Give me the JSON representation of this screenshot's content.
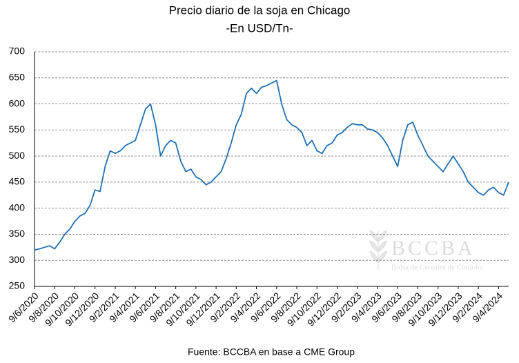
{
  "chart_data": {
    "type": "line",
    "title": "Precio diario de la soja en Chicago",
    "subtitle": "-En USD/Tn-",
    "source": "Fuente: BCCBA en base a CME Group",
    "watermark": "BCCBA",
    "watermark_subtitle": "Bolsa de Cereales de Córdoba",
    "categories": [
      "9/6/2020",
      null,
      null,
      null,
      "9/8/2020",
      null,
      null,
      null,
      "9/10/2020",
      null,
      null,
      null,
      "9/12/2020",
      null,
      null,
      null,
      "9/2/2021",
      null,
      null,
      null,
      "9/4/2021",
      null,
      null,
      null,
      "9/6/2021",
      null,
      null,
      null,
      "9/8/2021",
      null,
      null,
      null,
      "9/10/2021",
      null,
      null,
      null,
      "9/12/2021",
      null,
      null,
      null,
      "9/2/2022",
      null,
      null,
      null,
      "9/4/2022",
      null,
      null,
      null,
      "9/6/2022",
      null,
      null,
      null,
      "9/8/2022",
      null,
      null,
      null,
      "9/10/2022",
      null,
      null,
      null,
      "9/12/2022",
      null,
      null,
      null,
      "9/2/2023",
      null,
      null,
      null,
      "9/4/2023",
      null,
      null,
      null,
      "9/6/2023",
      null,
      null,
      null,
      "9/8/2023",
      null,
      null,
      null,
      "9/10/2023",
      null,
      null,
      null,
      "9/12/2023",
      null,
      null,
      null,
      "9/2/2024",
      null,
      null,
      null,
      "9/4/2024",
      null,
      null
    ],
    "series": [
      {
        "name": "Soja Chicago",
        "color": "#1f6fb4",
        "values": [
          320,
          322,
          325,
          328,
          322,
          335,
          350,
          360,
          375,
          385,
          390,
          405,
          435,
          432,
          480,
          510,
          505,
          510,
          520,
          525,
          530,
          560,
          590,
          600,
          560,
          500,
          520,
          530,
          525,
          490,
          470,
          475,
          460,
          455,
          445,
          450,
          460,
          470,
          495,
          525,
          560,
          580,
          620,
          630,
          620,
          632,
          635,
          640,
          645,
          600,
          570,
          560,
          555,
          545,
          520,
          530,
          510,
          505,
          520,
          525,
          540,
          545,
          555,
          562,
          560,
          560,
          552,
          550,
          545,
          535,
          520,
          500,
          480,
          530,
          560,
          565,
          540,
          520,
          500,
          490,
          480,
          470,
          485,
          500,
          485,
          470,
          450,
          440,
          430,
          425,
          435,
          440,
          430,
          425,
          450
        ]
      }
    ],
    "ylim": [
      250,
      700
    ],
    "yticks": [
      250,
      300,
      350,
      400,
      450,
      500,
      550,
      600,
      650,
      700
    ],
    "grid": true
  }
}
